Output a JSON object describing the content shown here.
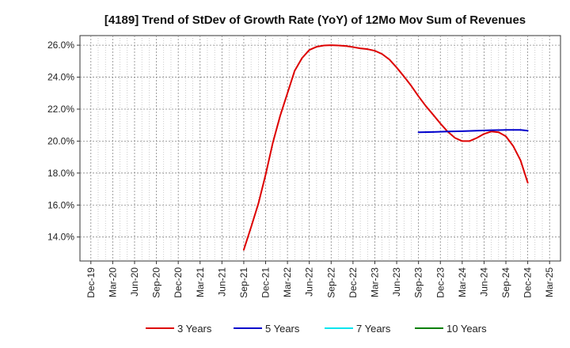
{
  "chart_data": {
    "type": "line",
    "title": "[4189]  Trend of StDev of Growth Rate (YoY) of 12Mo Mov Sum of Revenues",
    "xlabel": "",
    "ylabel": "",
    "ylim": [
      12.5,
      26.6
    ],
    "yticks": [
      14.0,
      16.0,
      18.0,
      20.0,
      22.0,
      24.0,
      26.0
    ],
    "ytick_labels": [
      "14.0%",
      "16.0%",
      "18.0%",
      "20.0%",
      "22.0%",
      "24.0%",
      "26.0%"
    ],
    "categories": [
      "Dec-19",
      "Mar-20",
      "Jun-20",
      "Sep-20",
      "Dec-20",
      "Mar-21",
      "Jun-21",
      "Sep-21",
      "Dec-21",
      "Mar-22",
      "Jun-22",
      "Sep-22",
      "Dec-22",
      "Mar-23",
      "Jun-23",
      "Sep-23",
      "Dec-23",
      "Mar-24",
      "Jun-24",
      "Sep-24",
      "Dec-24",
      "Mar-25"
    ],
    "grid": true,
    "legend_position": "bottom",
    "series": [
      {
        "name": "3 Years",
        "color": "#dd0000",
        "points": [
          [
            7.0,
            13.2
          ],
          [
            7.33,
            14.6
          ],
          [
            7.67,
            16.1
          ],
          [
            8.0,
            17.9
          ],
          [
            8.33,
            19.9
          ],
          [
            8.67,
            21.6
          ],
          [
            9.0,
            23.0
          ],
          [
            9.33,
            24.4
          ],
          [
            9.67,
            25.2
          ],
          [
            10.0,
            25.7
          ],
          [
            10.33,
            25.9
          ],
          [
            10.67,
            25.98
          ],
          [
            11.0,
            26.0
          ],
          [
            11.33,
            25.98
          ],
          [
            11.67,
            25.95
          ],
          [
            12.0,
            25.88
          ],
          [
            12.33,
            25.8
          ],
          [
            12.67,
            25.75
          ],
          [
            13.0,
            25.65
          ],
          [
            13.33,
            25.45
          ],
          [
            13.67,
            25.1
          ],
          [
            14.0,
            24.6
          ],
          [
            14.33,
            24.05
          ],
          [
            14.67,
            23.45
          ],
          [
            15.0,
            22.8
          ],
          [
            15.33,
            22.2
          ],
          [
            15.67,
            21.65
          ],
          [
            16.0,
            21.1
          ],
          [
            16.33,
            20.6
          ],
          [
            16.67,
            20.2
          ],
          [
            17.0,
            20.0
          ],
          [
            17.33,
            20.0
          ],
          [
            17.67,
            20.2
          ],
          [
            18.0,
            20.45
          ],
          [
            18.33,
            20.6
          ],
          [
            18.67,
            20.55
          ],
          [
            19.0,
            20.3
          ],
          [
            19.33,
            19.7
          ],
          [
            19.67,
            18.8
          ],
          [
            20.0,
            17.4
          ]
        ]
      },
      {
        "name": "5 Years",
        "color": "#0000cc",
        "points": [
          [
            15.0,
            20.55
          ],
          [
            15.67,
            20.57
          ],
          [
            16.33,
            20.6
          ],
          [
            17.0,
            20.62
          ],
          [
            17.67,
            20.65
          ],
          [
            18.33,
            20.68
          ],
          [
            19.0,
            20.7
          ],
          [
            19.67,
            20.7
          ],
          [
            20.0,
            20.65
          ]
        ]
      },
      {
        "name": "7 Years",
        "color": "#00e5ee",
        "points": []
      },
      {
        "name": "10 Years",
        "color": "#008000",
        "points": []
      }
    ]
  }
}
